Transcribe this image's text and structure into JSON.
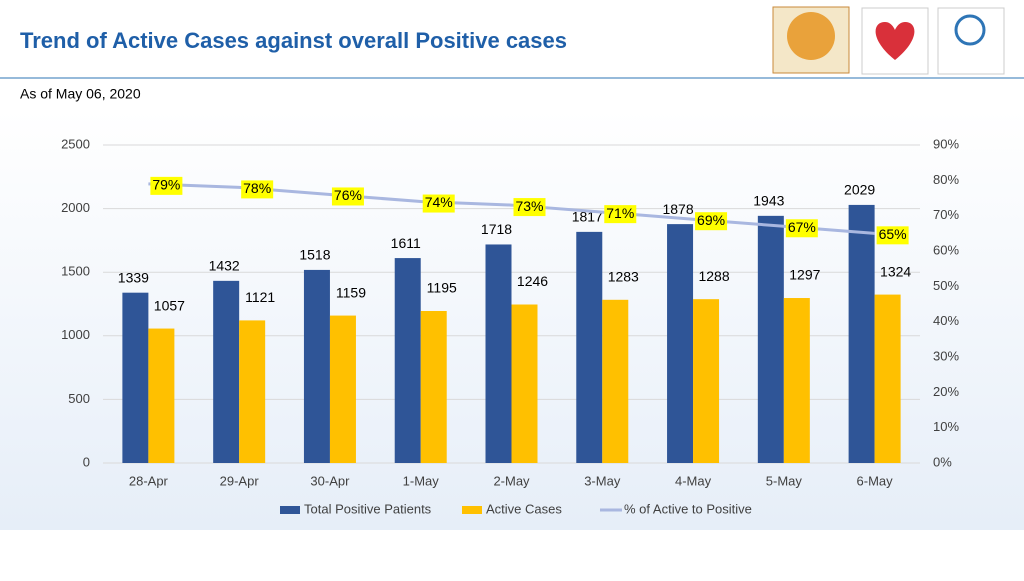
{
  "chart_data": {
    "type": "bar",
    "title": "Trend of Active Cases against overall Positive cases",
    "subtitle": "As of May 06, 2020",
    "categories": [
      "28-Apr",
      "29-Apr",
      "30-Apr",
      "1-May",
      "2-May",
      "3-May",
      "4-May",
      "5-May",
      "6-May"
    ],
    "series": [
      {
        "name": "Total Positive Patients",
        "color": "#2f5597",
        "values": [
          1339,
          1432,
          1518,
          1611,
          1718,
          1817,
          1878,
          1943,
          2029
        ]
      },
      {
        "name": "Active Cases",
        "color": "#ffc000",
        "values": [
          1057,
          1121,
          1159,
          1195,
          1246,
          1283,
          1288,
          1297,
          1324
        ]
      },
      {
        "name": "% of Active to Positive",
        "color": "#a9b7e0",
        "type": "line",
        "axis": "y2",
        "values": [
          79,
          78,
          76,
          74,
          73,
          71,
          69,
          67,
          65
        ],
        "value_labels": [
          "79%",
          "78%",
          "76%",
          "74%",
          "73%",
          "71%",
          "69%",
          "67%",
          "65%"
        ]
      }
    ],
    "ylim": [
      0,
      2500
    ],
    "yticks": [
      0,
      500,
      1000,
      1500,
      2000,
      2500
    ],
    "y2lim": [
      0,
      90
    ],
    "y2ticks": [
      {
        "value": 0,
        "label": "0%"
      },
      {
        "value": 10,
        "label": "10%"
      },
      {
        "value": 20,
        "label": "20%"
      },
      {
        "value": 30,
        "label": "30%"
      },
      {
        "value": 40,
        "label": "40%"
      },
      {
        "value": 50,
        "label": "50%"
      },
      {
        "value": 60,
        "label": "60%"
      },
      {
        "value": 70,
        "label": "70%"
      },
      {
        "value": 80,
        "label": "80%"
      },
      {
        "value": 90,
        "label": "90%"
      }
    ],
    "grid": true,
    "legend": "bottom"
  }
}
